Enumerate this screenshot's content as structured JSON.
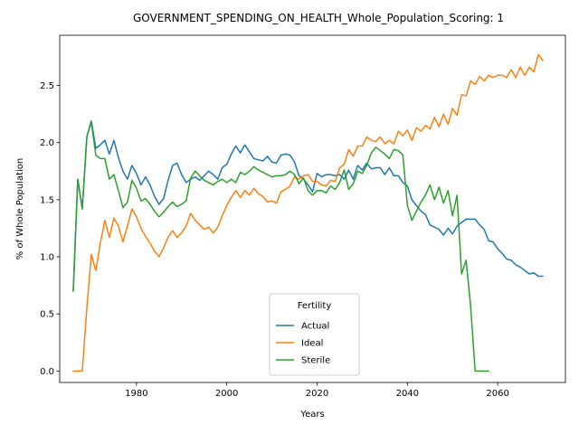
{
  "chart_data": {
    "type": "line",
    "title": "GOVERNMENT_SPENDING_ON_HEALTH_Whole_Population_Scoring: 1",
    "xlabel": "Years",
    "ylabel": "% of Whole Population",
    "xlim": [
      1963,
      2075
    ],
    "ylim": [
      -0.1,
      2.94
    ],
    "xticks": [
      1980,
      2000,
      2020,
      2040,
      2060
    ],
    "xtick_labels": [
      "1980",
      "2000",
      "2020",
      "2040",
      "2060"
    ],
    "yticks": [
      0.0,
      0.5,
      1.0,
      1.5,
      2.0,
      2.5
    ],
    "ytick_labels": [
      "0.0",
      "0.5",
      "1.0",
      "1.5",
      "2.0",
      "2.5"
    ],
    "grid": false,
    "legend": {
      "title": "Fertility",
      "placement": "lower-center"
    },
    "series": [
      {
        "name": "Actual",
        "color": "#1f77b4",
        "x": [
          1966,
          1967,
          1968,
          1969,
          1970,
          1971,
          1972,
          1973,
          1974,
          1975,
          1976,
          1977,
          1978,
          1979,
          1980,
          1981,
          1982,
          1983,
          1984,
          1985,
          1986,
          1987,
          1988,
          1989,
          1990,
          1991,
          1992,
          1993,
          1994,
          1995,
          1996,
          1997,
          1998,
          1999,
          2000,
          2001,
          2002,
          2003,
          2004,
          2005,
          2006,
          2007,
          2008,
          2009,
          2010,
          2011,
          2012,
          2013,
          2014,
          2015,
          2016,
          2017,
          2018,
          2019,
          2020,
          2021,
          2022,
          2023,
          2024,
          2025,
          2026,
          2027,
          2028,
          2029,
          2030,
          2031,
          2032,
          2033,
          2034,
          2035,
          2036,
          2037,
          2038,
          2039,
          2040,
          2041,
          2042,
          2043,
          2044,
          2045,
          2046,
          2047,
          2048,
          2049,
          2050,
          2051,
          2052,
          2053,
          2054,
          2055,
          2056,
          2057,
          2058,
          2059,
          2060,
          2061,
          2062,
          2063,
          2064,
          2065,
          2066,
          2067,
          2068,
          2069,
          2070
        ],
        "y": [
          0.7,
          1.68,
          1.42,
          2.05,
          2.19,
          1.95,
          1.98,
          2.02,
          1.9,
          2.02,
          1.87,
          1.75,
          1.68,
          1.8,
          1.73,
          1.63,
          1.7,
          1.63,
          1.53,
          1.46,
          1.51,
          1.67,
          1.8,
          1.82,
          1.72,
          1.65,
          1.68,
          1.7,
          1.67,
          1.71,
          1.75,
          1.72,
          1.68,
          1.78,
          1.81,
          1.9,
          1.97,
          1.91,
          1.98,
          1.92,
          1.86,
          1.85,
          1.84,
          1.88,
          1.83,
          1.82,
          1.89,
          1.9,
          1.89,
          1.83,
          1.71,
          1.68,
          1.63,
          1.57,
          1.73,
          1.7,
          1.72,
          1.72,
          1.71,
          1.72,
          1.68,
          1.76,
          1.68,
          1.8,
          1.76,
          1.82,
          1.77,
          1.78,
          1.78,
          1.72,
          1.78,
          1.71,
          1.71,
          1.65,
          1.62,
          1.5,
          1.45,
          1.4,
          1.37,
          1.28,
          1.26,
          1.24,
          1.19,
          1.25,
          1.2,
          1.27,
          1.3,
          1.33,
          1.33,
          1.33,
          1.28,
          1.24,
          1.14,
          1.13,
          1.07,
          1.03,
          0.98,
          0.97,
          0.93,
          0.91,
          0.88,
          0.85,
          0.86,
          0.83,
          0.83
        ]
      },
      {
        "name": "Ideal",
        "color": "#ff7f0e",
        "x": [
          1966,
          1967,
          1968,
          1969,
          1970,
          1971,
          1972,
          1973,
          1974,
          1975,
          1976,
          1977,
          1978,
          1979,
          1980,
          1981,
          1982,
          1983,
          1984,
          1985,
          1986,
          1987,
          1988,
          1989,
          1990,
          1991,
          1992,
          1993,
          1994,
          1995,
          1996,
          1997,
          1998,
          1999,
          2000,
          2001,
          2002,
          2003,
          2004,
          2005,
          2006,
          2007,
          2008,
          2009,
          2010,
          2011,
          2012,
          2013,
          2014,
          2015,
          2016,
          2017,
          2018,
          2019,
          2020,
          2021,
          2022,
          2023,
          2024,
          2025,
          2026,
          2027,
          2028,
          2029,
          2030,
          2031,
          2032,
          2033,
          2034,
          2035,
          2036,
          2037,
          2038,
          2039,
          2040,
          2041,
          2042,
          2043,
          2044,
          2045,
          2046,
          2047,
          2048,
          2049,
          2050,
          2051,
          2052,
          2053,
          2054,
          2055,
          2056,
          2057,
          2058,
          2059,
          2060,
          2061,
          2062,
          2063,
          2064,
          2065,
          2066,
          2067,
          2068,
          2069,
          2070
        ],
        "y": [
          0.0,
          0.0,
          0.0,
          0.55,
          1.02,
          0.88,
          1.12,
          1.32,
          1.17,
          1.34,
          1.27,
          1.13,
          1.27,
          1.42,
          1.35,
          1.25,
          1.18,
          1.12,
          1.05,
          1.0,
          1.08,
          1.17,
          1.23,
          1.17,
          1.21,
          1.27,
          1.38,
          1.32,
          1.28,
          1.24,
          1.26,
          1.21,
          1.26,
          1.36,
          1.45,
          1.52,
          1.58,
          1.52,
          1.58,
          1.54,
          1.6,
          1.55,
          1.53,
          1.48,
          1.49,
          1.47,
          1.57,
          1.59,
          1.62,
          1.7,
          1.68,
          1.71,
          1.72,
          1.66,
          1.66,
          1.63,
          1.62,
          1.67,
          1.66,
          1.78,
          1.81,
          1.94,
          1.88,
          1.97,
          1.97,
          2.05,
          2.02,
          2.01,
          2.05,
          1.99,
          2.02,
          1.99,
          2.1,
          2.06,
          2.11,
          2.02,
          2.13,
          2.1,
          2.15,
          2.12,
          2.22,
          2.14,
          2.25,
          2.16,
          2.3,
          2.24,
          2.42,
          2.41,
          2.54,
          2.51,
          2.58,
          2.54,
          2.59,
          2.57,
          2.59,
          2.59,
          2.57,
          2.64,
          2.57,
          2.66,
          2.59,
          2.66,
          2.62,
          2.77,
          2.72
        ]
      },
      {
        "name": "Sterile",
        "color": "#2ca02c",
        "x": [
          1966,
          1967,
          1968,
          1969,
          1970,
          1971,
          1972,
          1973,
          1974,
          1975,
          1976,
          1977,
          1978,
          1979,
          1980,
          1981,
          1982,
          1983,
          1984,
          1985,
          1986,
          1987,
          1988,
          1989,
          1990,
          1991,
          1992,
          1993,
          1994,
          1995,
          1996,
          1997,
          1998,
          1999,
          2000,
          2001,
          2002,
          2003,
          2004,
          2005,
          2006,
          2007,
          2008,
          2009,
          2010,
          2011,
          2012,
          2013,
          2014,
          2015,
          2016,
          2017,
          2018,
          2019,
          2020,
          2021,
          2022,
          2023,
          2024,
          2025,
          2026,
          2027,
          2028,
          2029,
          2030,
          2031,
          2032,
          2033,
          2034,
          2035,
          2036,
          2037,
          2038,
          2039,
          2040,
          2041,
          2042,
          2043,
          2044,
          2045,
          2046,
          2047,
          2048,
          2049,
          2050,
          2051,
          2052,
          2053,
          2054,
          2055,
          2056,
          2057,
          2058
        ],
        "y": [
          0.7,
          1.68,
          1.42,
          2.05,
          2.18,
          1.89,
          1.86,
          1.86,
          1.68,
          1.72,
          1.58,
          1.43,
          1.48,
          1.67,
          1.6,
          1.49,
          1.51,
          1.46,
          1.4,
          1.35,
          1.39,
          1.44,
          1.48,
          1.44,
          1.46,
          1.49,
          1.69,
          1.75,
          1.71,
          1.67,
          1.65,
          1.63,
          1.66,
          1.68,
          1.65,
          1.68,
          1.65,
          1.74,
          1.72,
          1.75,
          1.79,
          1.76,
          1.74,
          1.72,
          1.7,
          1.71,
          1.71,
          1.72,
          1.75,
          1.72,
          1.64,
          1.69,
          1.58,
          1.54,
          1.58,
          1.58,
          1.56,
          1.62,
          1.59,
          1.65,
          1.76,
          1.59,
          1.64,
          1.75,
          1.73,
          1.8,
          1.91,
          1.96,
          1.93,
          1.9,
          1.86,
          1.94,
          1.93,
          1.89,
          1.45,
          1.32,
          1.4,
          1.48,
          1.54,
          1.63,
          1.5,
          1.61,
          1.47,
          1.58,
          1.36,
          1.54,
          0.85,
          0.97,
          0.57,
          0.0,
          0.0,
          0.0,
          0.0
        ]
      }
    ]
  }
}
